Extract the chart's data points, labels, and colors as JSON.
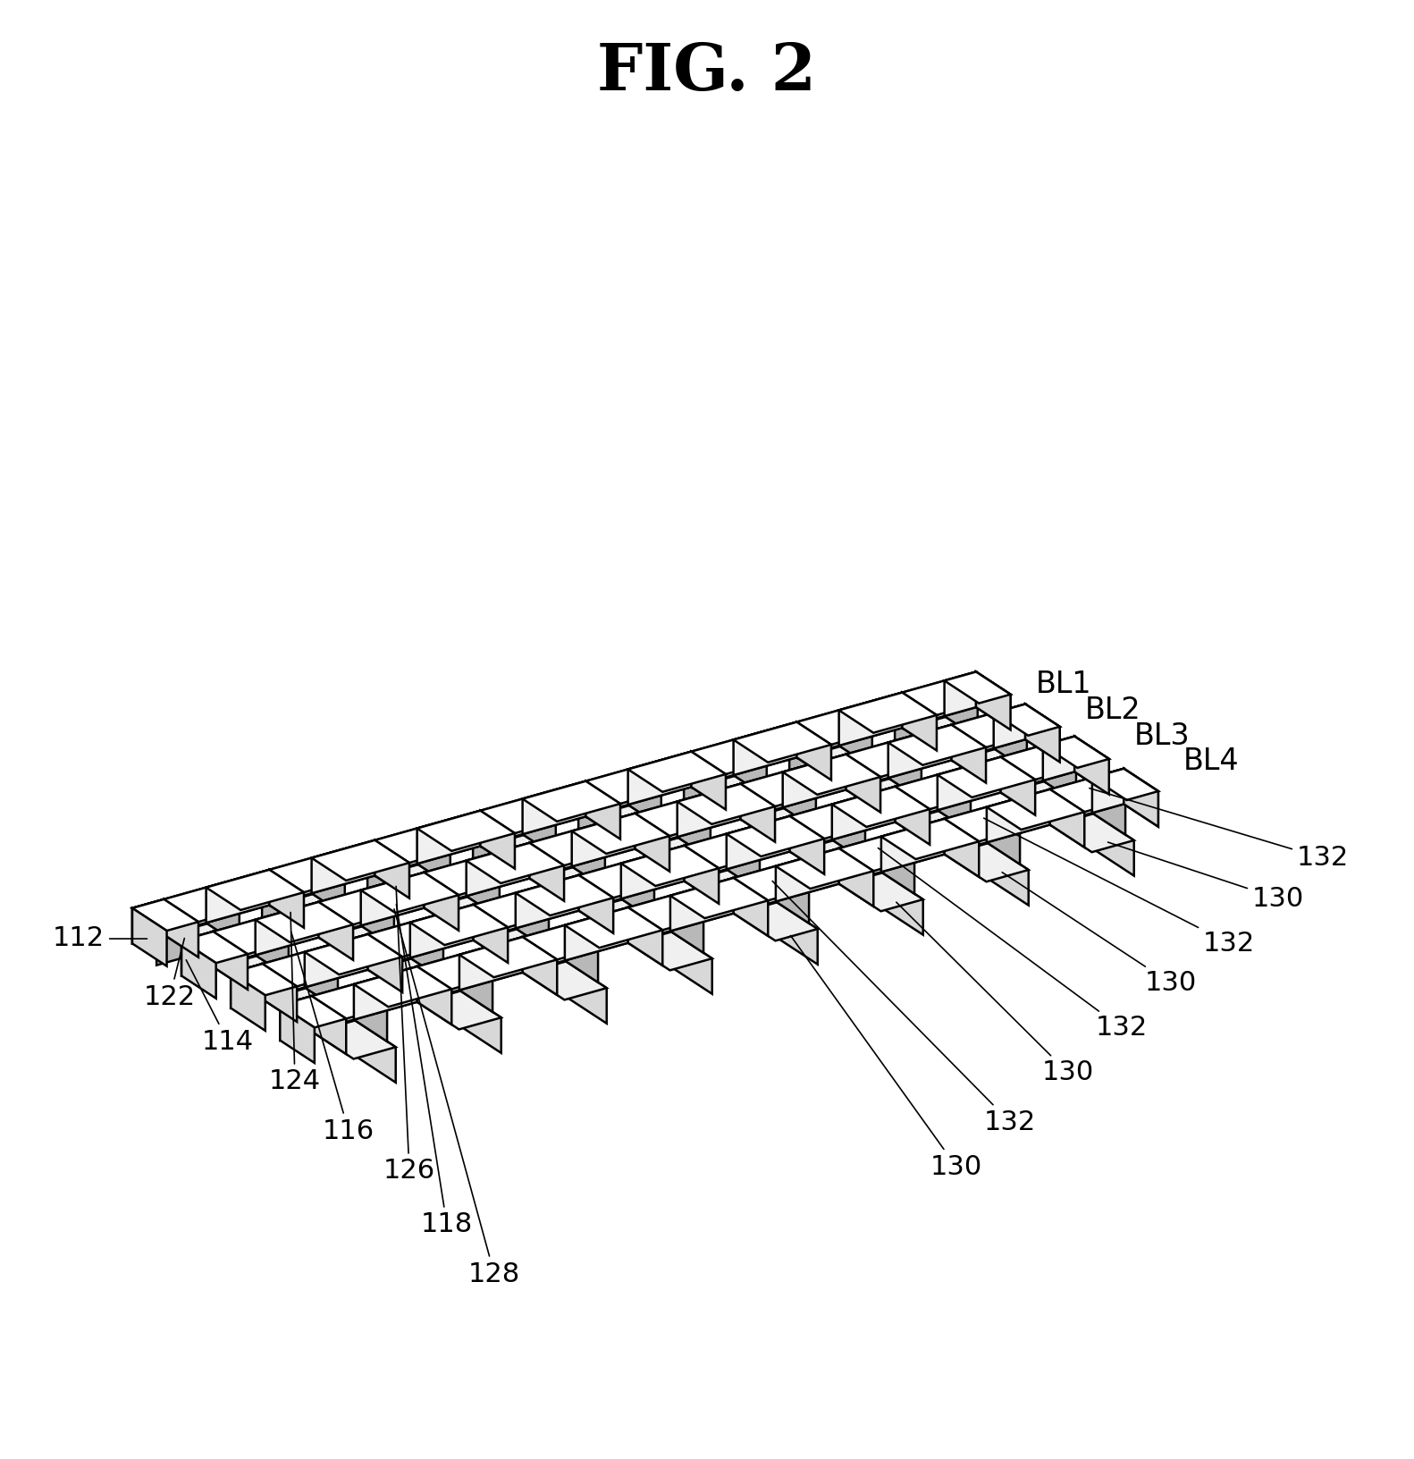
{
  "title": "FIG. 2",
  "title_fontsize": 52,
  "title_font": "serif",
  "bg_color": "#ffffff",
  "line_color": "#000000",
  "lw": 1.8,
  "fc_white": "#ffffff",
  "fc_light": "#f0f0f0",
  "fc_mid": "#d8d8d8",
  "fc_dark": "#b8b8b8",
  "bl_labels": [
    "BL1",
    "BL2",
    "BL3",
    "BL4"
  ],
  "n_bl": 4,
  "n_wl": 8,
  "ann_fontsize": 22
}
